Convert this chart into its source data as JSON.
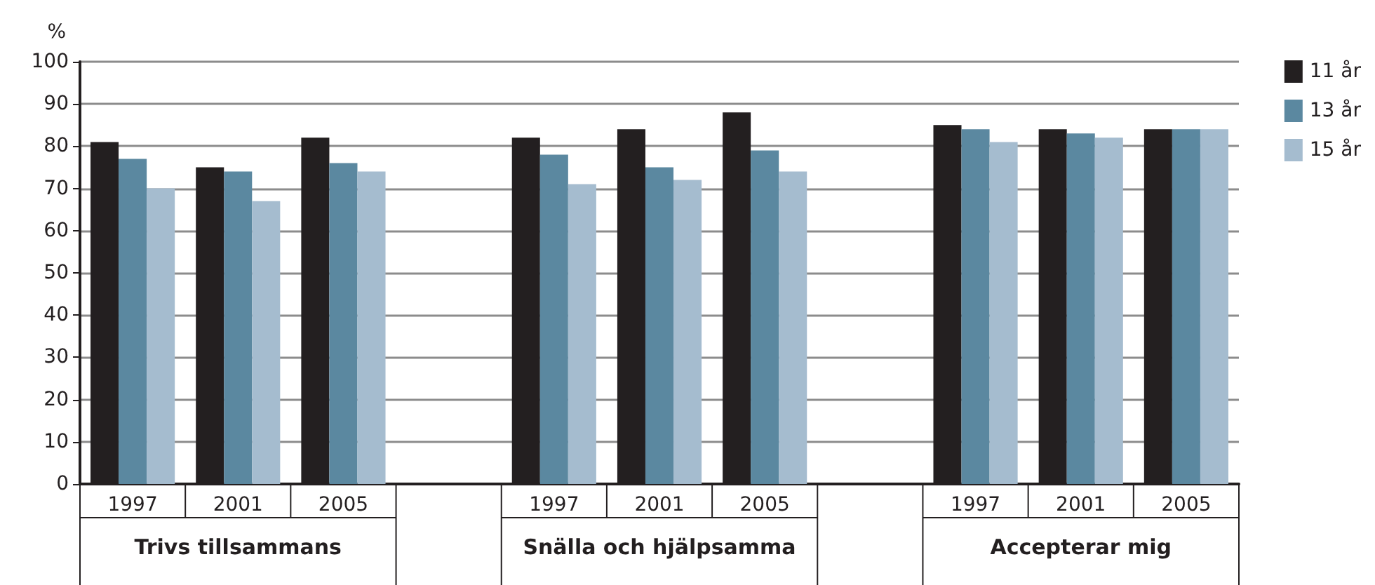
{
  "chart_data": {
    "type": "bar",
    "ylabel": "%",
    "categories": [
      "1997",
      "2001",
      "2005",
      null,
      "1997",
      "2001",
      "2005",
      null,
      "1997",
      "2001",
      "2005"
    ],
    "annotations": [
      "Trivs tillsammans",
      "Snälla och hjälpsamma",
      "Accepterar mig"
    ],
    "series": [
      {
        "name": "11 år",
        "color": "#231f20",
        "values": [
          81,
          75,
          82,
          null,
          82,
          84,
          88,
          null,
          85,
          84,
          84
        ]
      },
      {
        "name": "13 år",
        "color": "#5b88a0",
        "values": [
          77,
          74,
          76,
          null,
          78,
          75,
          79,
          null,
          84,
          83,
          84
        ]
      },
      {
        "name": "15 år",
        "color": "#a5bccf",
        "values": [
          70,
          67,
          74,
          null,
          71,
          72,
          74,
          null,
          81,
          82,
          84
        ]
      }
    ],
    "ylim": [
      0,
      100
    ],
    "yticks": [
      0,
      10,
      20,
      30,
      40,
      50,
      60,
      70,
      80,
      90,
      100
    ],
    "grid": "y",
    "legend": "top right"
  }
}
